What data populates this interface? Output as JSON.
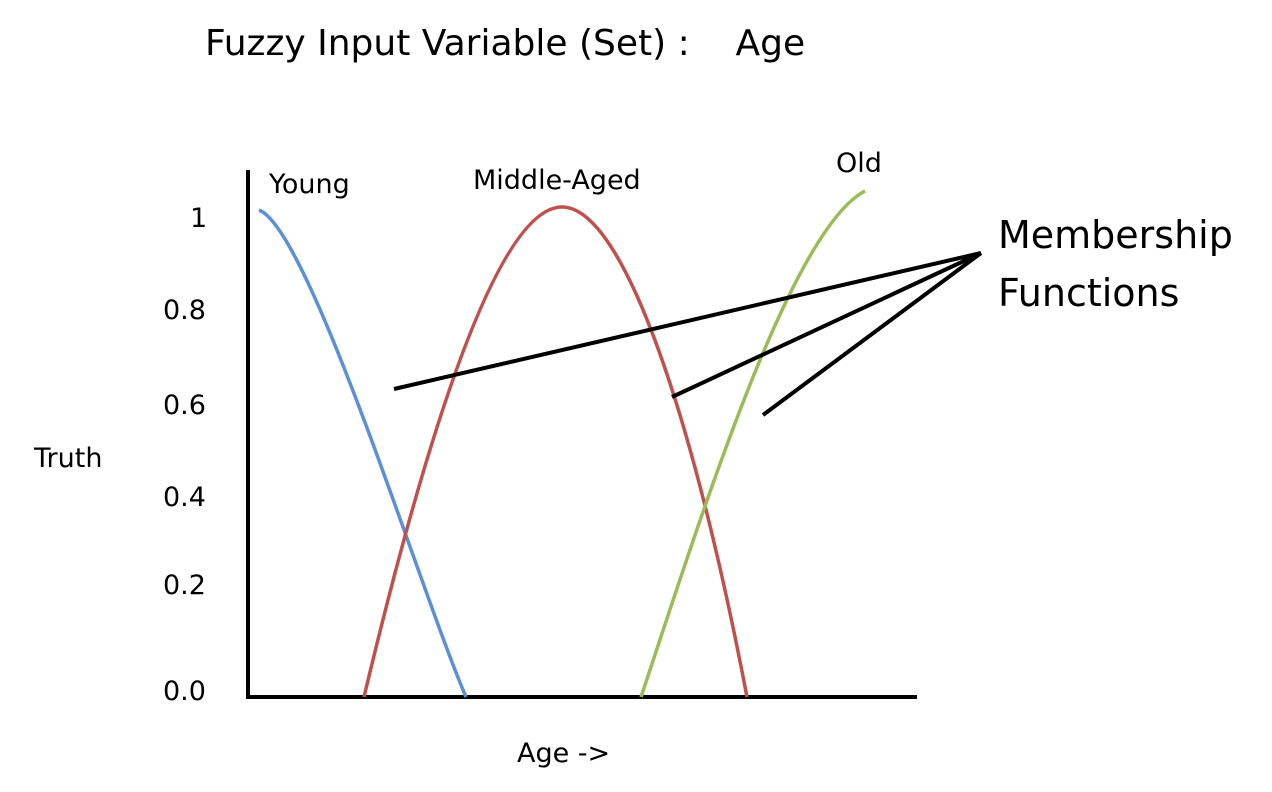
{
  "title": "Fuzzy Input Variable (Set) :    Age",
  "ylabel": "Truth",
  "xlabel": "Age ->",
  "callout": {
    "line1": "Membership",
    "line2": "Functions"
  },
  "y_ticks": [
    "1",
    "0.8",
    "0.6",
    "0.4",
    "0.2",
    "0.0"
  ],
  "series": [
    {
      "name": "Young",
      "color": "#5b8fd6"
    },
    {
      "name": "Middle-Aged",
      "color": "#c0504d"
    },
    {
      "name": "Old",
      "color": "#9bbb59"
    }
  ],
  "colors": {
    "axis": "#000000",
    "pointer": "#000000"
  }
}
